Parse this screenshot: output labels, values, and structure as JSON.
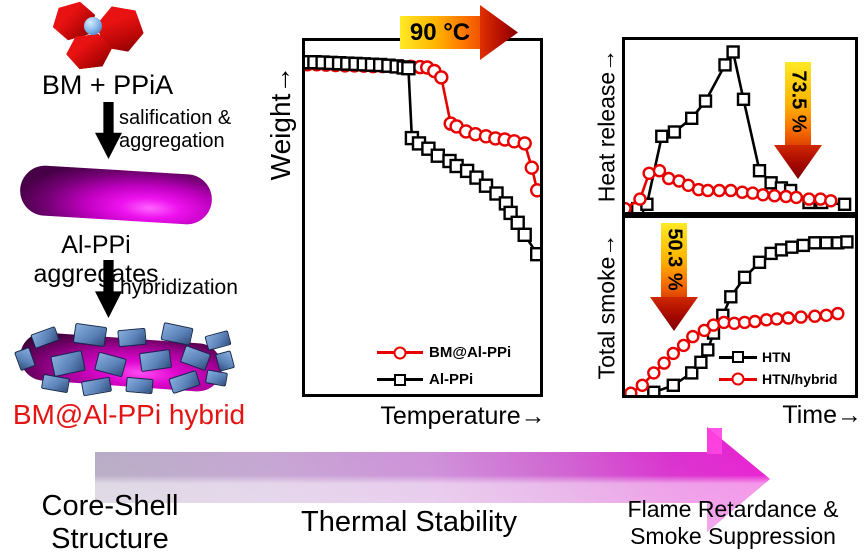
{
  "scheme": {
    "reactants": "BM + PPiA",
    "step1": [
      "salification &",
      "aggregation"
    ],
    "intermediate": "Al-PPi aggregates",
    "step2": "hybridization",
    "product": "BM@Al-PPi hybrid"
  },
  "banner": {
    "stage1": [
      "Core-Shell",
      "Structure"
    ],
    "stage2": "Thermal Stability",
    "stage3": [
      "Flame Retardance &",
      "Smoke Suppression"
    ]
  },
  "colors": {
    "curve_red": "#e80000",
    "curve_black": "#000000",
    "product_text_red": "#e41414",
    "annotation_gradient_top": "#ffe925",
    "annotation_gradient_bottom": "#7e0000",
    "banner_gradient_start": "#b7abc4",
    "banner_gradient_end": "#e91ad1",
    "rod_magenta": "#e800e8",
    "platelet_blue": "#5d84ba",
    "crystal_red": "#cc0a0a",
    "sphere_blue": "#8cbcec"
  },
  "chart_data": [
    {
      "id": "tga-weight-vs-temperature",
      "type": "line",
      "xlabel": "Temperature→",
      "ylabel": "Weight→",
      "annotation": "90 °C",
      "xlim": [
        0,
        100
      ],
      "ylim": [
        0,
        100
      ],
      "grid": false,
      "legend_position": "lower right",
      "marker_size": 12,
      "series": [
        {
          "name": "BM@Al-PPi",
          "color": "#e80000",
          "marker": "circle",
          "x": [
            1,
            5,
            9,
            13,
            17,
            21,
            25,
            29,
            33,
            37,
            41,
            45,
            49,
            52,
            55,
            58,
            62,
            64.5,
            68.5,
            72.5,
            77,
            81,
            85,
            89,
            93.5,
            96.5,
            98.8
          ],
          "y": [
            93.4,
            93.4,
            93.3,
            93.2,
            93.1,
            93.1,
            93,
            92.9,
            92.9,
            92.8,
            92.8,
            92.7,
            92.6,
            92.5,
            91.5,
            89.7,
            76.6,
            75.8,
            74.4,
            73.6,
            73,
            72.4,
            72.1,
            71.6,
            71,
            64.1,
            57.7
          ]
        },
        {
          "name": "Al-PPi",
          "color": "#000000",
          "marker": "square",
          "x": [
            0.5,
            4,
            7.5,
            11,
            14.5,
            18,
            21.5,
            25,
            28.5,
            32,
            35.5,
            39,
            42,
            44,
            45.5,
            48.5,
            52.5,
            56.5,
            61.5,
            64.5,
            69,
            73,
            77,
            81.5,
            85.5,
            87.5,
            90.5,
            93.5,
            98.8
          ],
          "y": [
            94,
            94,
            93.9,
            93.8,
            93.7,
            93.6,
            93.5,
            93.4,
            93.3,
            93.2,
            93,
            92.8,
            92.5,
            92.3,
            72.5,
            71,
            69.5,
            67.5,
            66,
            64.6,
            63.2,
            61.3,
            59,
            56.8,
            54,
            51.3,
            48.5,
            45.1,
            39.6
          ]
        }
      ]
    },
    {
      "id": "heat-release-vs-time",
      "type": "line",
      "ylabel": "Heat release→",
      "annotation": "73.5 %",
      "xlim": [
        0,
        100
      ],
      "ylim": [
        0,
        100
      ],
      "grid": false,
      "marker_size": 11,
      "series": [
        {
          "name": "HTN",
          "color": "#000000",
          "marker": "square",
          "x": [
            5.5,
            9.5,
            16,
            21.5,
            29,
            35,
            43.5,
            47,
            51.5,
            58.5,
            63.5,
            68,
            72,
            80,
            85.5,
            95.5
          ],
          "y": [
            2,
            4.5,
            44,
            46.5,
            54.5,
            64.5,
            85.5,
            93,
            65.5,
            24,
            17,
            14,
            12.5,
            5.5,
            5.5,
            4.5
          ]
        },
        {
          "name": "HTN/hybrid",
          "color": "#e80000",
          "marker": "circle",
          "x": [
            0,
            6.5,
            10.5,
            15,
            19,
            23.5,
            27.5,
            32,
            36,
            41,
            46,
            51,
            55.5,
            60,
            65,
            70,
            74.5,
            80,
            85,
            89.5
          ],
          "y": [
            2,
            7.5,
            22.5,
            24,
            19.5,
            18,
            15.5,
            13,
            12.5,
            12.5,
            12.5,
            11.5,
            11,
            10,
            9.5,
            9,
            8.5,
            7.5,
            7.5,
            6.5
          ]
        }
      ]
    },
    {
      "id": "total-smoke-vs-time",
      "type": "line",
      "xlabel": "Time→",
      "ylabel": "Total smoke→",
      "annotation": "50.3 %",
      "xlim": [
        0,
        100
      ],
      "ylim": [
        0,
        100
      ],
      "grid": false,
      "legend_position": "lower right",
      "marker_size": 11,
      "series": [
        {
          "name": "HTN",
          "color": "#000000",
          "marker": "square",
          "x": [
            12.5,
            21,
            29,
            33,
            36,
            38.5,
            42.5,
            46,
            52,
            58.5,
            63.5,
            68,
            72.5,
            77.5,
            82.5,
            87.5,
            92.5,
            96.5
          ],
          "y": [
            1.5,
            5.5,
            12.5,
            18.5,
            25.5,
            35,
            45,
            55.5,
            66.5,
            75,
            80,
            82,
            83.5,
            84.5,
            86,
            86,
            86,
            86.5
          ]
        },
        {
          "name": "HTN/hybrid",
          "color": "#e80000",
          "marker": "circle",
          "x": [
            2.5,
            7.5,
            12.5,
            17,
            21,
            25.5,
            29.5,
            34.5,
            38.5,
            43,
            47.5,
            52,
            56.5,
            61.5,
            66,
            71,
            76.5,
            82.5,
            87.5,
            92.5
          ],
          "y": [
            1,
            5.5,
            12.5,
            18,
            23.5,
            28,
            33,
            36.5,
            39.5,
            41,
            40.5,
            41,
            41.5,
            42.5,
            43,
            43.5,
            44,
            44.5,
            45,
            46
          ]
        }
      ]
    }
  ]
}
